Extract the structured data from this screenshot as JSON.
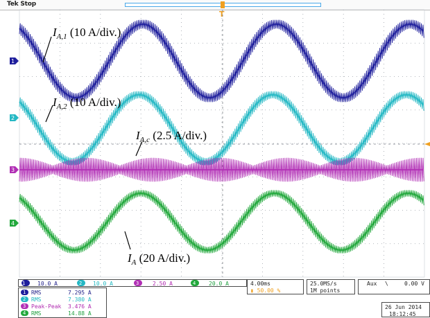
{
  "scope": {
    "status": "Tek Stop",
    "trigger_marker": "T"
  },
  "colors": {
    "ch1": "#1e1e9c",
    "ch2": "#25b8c4",
    "ch3": "#b12fb5",
    "ch4": "#22a83c",
    "grid": "#9aa0a8",
    "trigger": "#f0a020"
  },
  "annotations": {
    "ia1": {
      "sym": "I",
      "sub": "A,1",
      "scale": "(10 A/div.)"
    },
    "ia2": {
      "sym": "I",
      "sub": "A,2",
      "scale": "(10 A/div.)"
    },
    "iac": {
      "sym": "I",
      "sub": "A,c",
      "scale": "(2.5 A/div.)"
    },
    "ia": {
      "sym": "I",
      "sub": "A",
      "scale": "(20 A/div.)"
    }
  },
  "channels": [
    {
      "num": "1",
      "scale": "10.0 A"
    },
    {
      "num": "2",
      "scale": "10.0 A"
    },
    {
      "num": "3",
      "scale": "2.50 A"
    },
    {
      "num": "4",
      "scale": "20.0 A"
    }
  ],
  "horizontal": {
    "time_div": "4.00ms",
    "trig_pos": "50.00 %"
  },
  "acquisition": {
    "rate": "25.0MS/s",
    "points": "1M points"
  },
  "trigger": {
    "source": "Aux",
    "slope": "\\",
    "level": "0.00 V"
  },
  "measurements": [
    {
      "ch": "1",
      "type": "RMS",
      "value": "7.295 A"
    },
    {
      "ch": "2",
      "type": "RMS",
      "value": "7.380 A"
    },
    {
      "ch": "3",
      "type": "Peak-Peak",
      "value": "3.476 A"
    },
    {
      "ch": "4",
      "type": "RMS",
      "value": "14.88 A"
    }
  ],
  "datetime": {
    "date": "26 Jun 2014",
    "time": "18:12:45"
  },
  "waveforms": {
    "ch1": {
      "period_div": 3.3,
      "amplitude_div": 1.1,
      "ripple_div": 0.22,
      "phase_deg": 118
    },
    "ch2": {
      "period_div": 3.3,
      "amplitude_div": 1.0,
      "ripple_div": 0.18,
      "phase_deg": 128
    },
    "ch3": {
      "period_div": 3.3,
      "amplitude_div": 0.0,
      "ripple_div": 0.35,
      "phase_deg": 0
    },
    "ch4": {
      "period_div": 3.3,
      "amplitude_div": 0.85,
      "ripple_div": 0.16,
      "phase_deg": 123
    }
  }
}
